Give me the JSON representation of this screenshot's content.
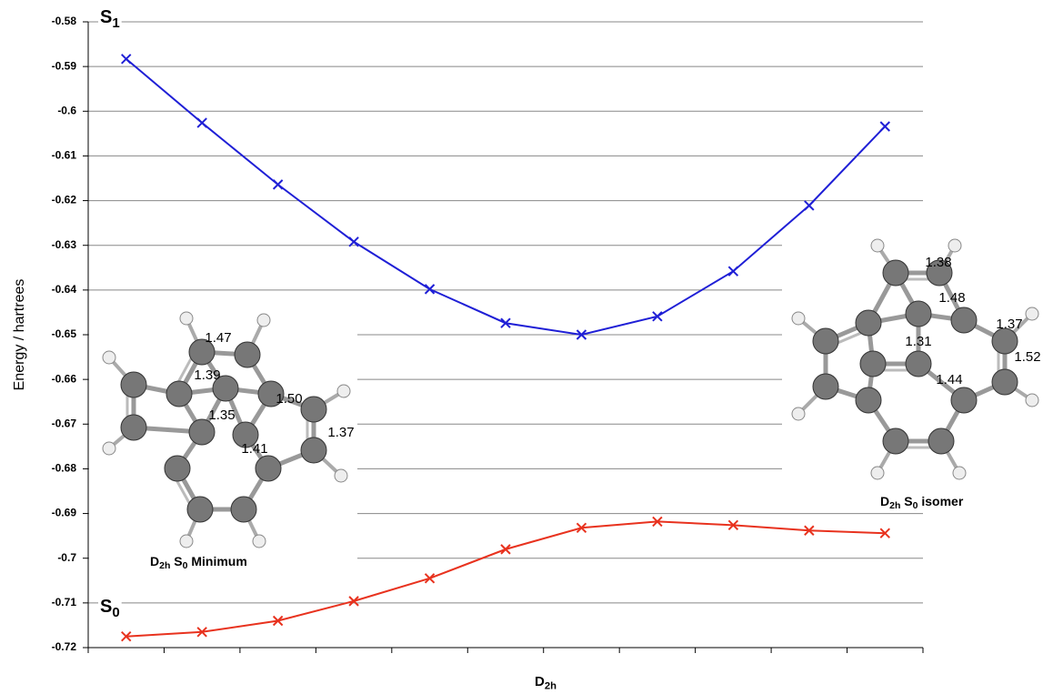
{
  "chart_data": {
    "type": "line",
    "y_label": "Energy / hartrees",
    "x_label": [
      "D",
      "2h"
    ],
    "categories": [
      null,
      null,
      null,
      null,
      null,
      null,
      null,
      null,
      null,
      null,
      null
    ],
    "series": [
      {
        "name": [
          "S",
          "1"
        ],
        "color": "#1f1fd6",
        "values": [
          -0.5883,
          -0.6026,
          -0.6164,
          -0.6292,
          -0.6398,
          -0.6474,
          -0.65,
          -0.6459,
          -0.6358,
          -0.6211,
          -0.6034
        ]
      },
      {
        "name": [
          "S",
          "0"
        ],
        "color": "#e8321e",
        "values": [
          -0.7175,
          -0.7165,
          -0.714,
          -0.7096,
          -0.7045,
          -0.698,
          -0.6932,
          -0.6918,
          -0.6926,
          -0.6938,
          -0.6944
        ]
      }
    ],
    "ylim": [
      -0.72,
      -0.58
    ],
    "yticks": [
      -0.58,
      -0.59,
      -0.6,
      -0.61,
      -0.62,
      -0.63,
      -0.64,
      -0.65,
      -0.66,
      -0.67,
      -0.68,
      -0.69,
      -0.7,
      -0.71,
      -0.72
    ],
    "grid": true,
    "annotations": [
      [
        "D",
        "2h",
        " S",
        "0",
        " Minimum"
      ],
      [
        "D",
        "2h",
        " S",
        "0",
        " isomer"
      ]
    ],
    "left_molecule_bonds": [
      "1.47",
      "1.39",
      "1.50",
      "1.35",
      "1.41",
      "1.37"
    ],
    "right_molecule_bonds": [
      "1.38",
      "1.48",
      "1.37",
      "1.31",
      "1.52",
      "1.44"
    ]
  }
}
